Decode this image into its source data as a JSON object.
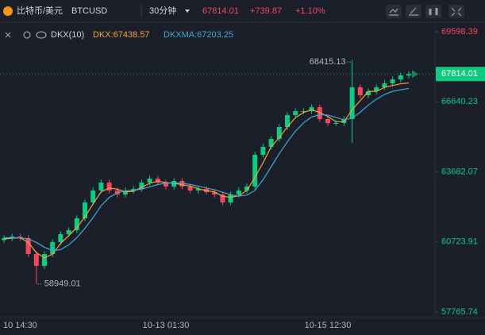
{
  "header": {
    "name": "比特币/美元",
    "symbol": "BTCUSD",
    "interval": "30分钟",
    "price": "67814.01",
    "change": "+739.87",
    "change_pct": "+1.10%"
  },
  "chart_data": {
    "type": "candlestick",
    "indicator": {
      "name": "DKX(10)",
      "legend": [
        "DKX:67438.57",
        "DKXMA:67203.25"
      ]
    },
    "categories": [
      null,
      null,
      "10 14:30",
      null,
      null,
      null,
      null,
      null,
      null,
      null,
      null,
      null,
      null,
      null,
      null,
      null,
      null,
      null,
      null,
      null,
      "10-13 01:30",
      null,
      null,
      null,
      null,
      null,
      null,
      null,
      null,
      null,
      null,
      null,
      null,
      null,
      null,
      null,
      null,
      null,
      null,
      null,
      "10-15 12:30",
      null,
      null,
      null,
      null,
      null,
      null,
      null,
      null,
      null,
      null
    ],
    "open": [
      60800,
      60883,
      60950,
      60883,
      60212,
      59710,
      60212,
      60715,
      61050,
      61218,
      61721,
      62391,
      62894,
      63229,
      62894,
      62726,
      62894,
      62961,
      63229,
      63397,
      63229,
      63062,
      63296,
      63062,
      62894,
      62961,
      62827,
      62726,
      62391,
      62726,
      62894,
      63062,
      64402,
      64738,
      65073,
      65576,
      66078,
      66246,
      66246,
      66414,
      65911,
      65743,
      65743,
      65911,
      67252,
      66916,
      67084,
      67252,
      67419,
      67587,
      67754
    ],
    "high": [
      61003,
      61070,
      61070,
      61003,
      60332,
      60332,
      60835,
      61170,
      61338,
      61841,
      62511,
      63014,
      63349,
      63349,
      63014,
      63014,
      63081,
      63349,
      63517,
      63517,
      63349,
      63416,
      63416,
      63182,
      63081,
      63081,
      62947,
      62846,
      62846,
      63014,
      63182,
      64522,
      64858,
      65193,
      65696,
      66198,
      66366,
      66366,
      66534,
      66534,
      66031,
      65863,
      66031,
      68415.13,
      67372,
      67204,
      67372,
      67539,
      67707,
      67874,
      67934
    ],
    "low": [
      60680,
      60763,
      60763,
      60092,
      58949.01,
      59590,
      60092,
      60595,
      60930,
      61098,
      61601,
      62271,
      62774,
      62774,
      62606,
      62606,
      62774,
      62841,
      63109,
      63109,
      62942,
      62942,
      62942,
      62774,
      62774,
      62707,
      62606,
      62271,
      62271,
      62606,
      62774,
      62942,
      64282,
      64618,
      64953,
      65456,
      65958,
      66126,
      66126,
      65791,
      65623,
      65623,
      65623,
      64900,
      66796,
      66796,
      66964,
      67132,
      67299,
      67467,
      67634
    ],
    "close": [
      60883,
      60950,
      60883,
      60212,
      59710,
      60212,
      60715,
      61050,
      61218,
      61721,
      62391,
      62894,
      63229,
      62894,
      62726,
      62894,
      62961,
      63229,
      63397,
      63229,
      63062,
      63296,
      63062,
      62894,
      62961,
      62827,
      62726,
      62391,
      62726,
      62894,
      63062,
      64402,
      64738,
      65073,
      65576,
      66078,
      66246,
      66246,
      66414,
      65911,
      65743,
      65743,
      65911,
      67252,
      66916,
      67084,
      67252,
      67419,
      67587,
      67754,
      67814.01
    ],
    "up_color": "#0ecb81",
    "down_color": "#f6465d",
    "series": [
      {
        "name": "DKX",
        "color": "#f0a33c",
        "values": [
          60850,
          60880,
          60900,
          60700,
          60270,
          60050,
          60210,
          60660,
          60990,
          61330,
          61780,
          62330,
          62840,
          63000,
          62950,
          62840,
          62860,
          63030,
          63200,
          63290,
          63230,
          63200,
          63140,
          63080,
          62970,
          62890,
          62840,
          62650,
          62610,
          62670,
          62900,
          63450,
          64070,
          64740,
          65130,
          65580,
          65970,
          66190,
          66300,
          66190,
          66020,
          65800,
          65800,
          66300,
          66690,
          67080,
          67080,
          67250,
          67330,
          67400,
          67438.57
        ]
      },
      {
        "name": "DKXMA",
        "color": "#3fa9d6",
        "values": [
          60900,
          60900,
          60900,
          60850,
          60700,
          60500,
          60350,
          60400,
          60600,
          60900,
          61300,
          61750,
          62250,
          62600,
          62800,
          62880,
          62900,
          62950,
          63050,
          63150,
          63200,
          63220,
          63200,
          63150,
          63080,
          63000,
          62930,
          62820,
          62720,
          62660,
          62700,
          62900,
          63350,
          63900,
          64450,
          64950,
          65400,
          65750,
          66000,
          66100,
          66080,
          65980,
          65880,
          65950,
          66200,
          66500,
          66750,
          66950,
          67080,
          67150,
          67203.25
        ]
      }
    ],
    "ylim": [
      57765.74,
      69598.39
    ],
    "yticks": [
      57765.74,
      60723.91,
      63682.07,
      66640.23,
      69598.39
    ]
  }
}
